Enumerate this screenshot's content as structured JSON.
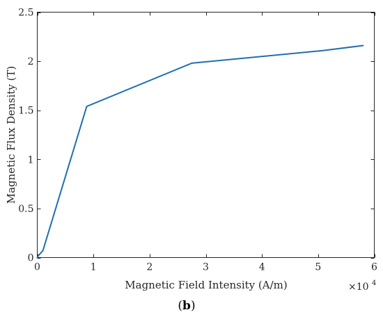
{
  "chart_data": {
    "type": "line",
    "title": "",
    "xlabel": "Magnetic Field Intensity (A/m)",
    "ylabel": "Magnetic Flux Density (T)",
    "x_exponent_label": "×10",
    "x_exponent_power": "4",
    "xlim": [
      0,
      6
    ],
    "ylim": [
      0,
      2.5
    ],
    "xticks": [
      0,
      1,
      2,
      3,
      4,
      5,
      6
    ],
    "xtick_labels": [
      "0",
      "1",
      "2",
      "3",
      "4",
      "5",
      "6"
    ],
    "yticks": [
      0,
      0.5,
      1,
      1.5,
      2,
      2.5
    ],
    "ytick_labels": [
      "0",
      "0.5",
      "1",
      "1.5",
      "2",
      "2.5"
    ],
    "grid": false,
    "legend": "none",
    "series": [
      {
        "color": "#1f6fb0",
        "x": [
          0,
          0.02,
          0.1,
          0.88,
          2.75,
          5.1,
          5.8
        ],
        "y": [
          0,
          0.02,
          0.07,
          1.54,
          1.98,
          2.11,
          2.16
        ]
      }
    ]
  },
  "caption": {
    "open": "(",
    "bold": "b",
    "close": ")"
  }
}
